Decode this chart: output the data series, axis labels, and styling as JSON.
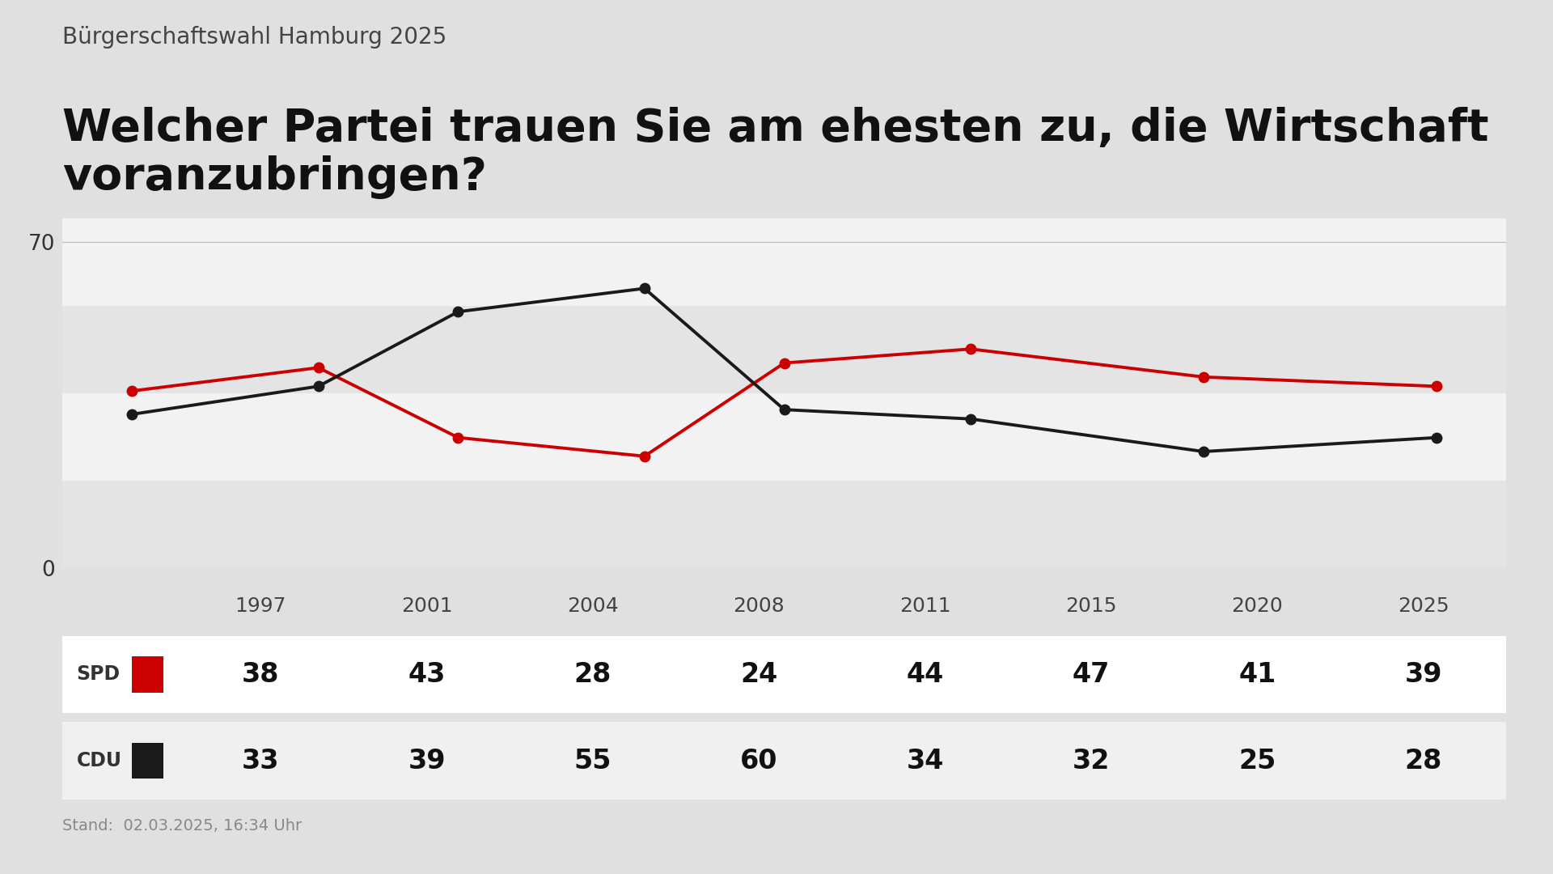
{
  "supertitle": "Bürgerschaftswahl Hamburg 2025",
  "title": "Welcher Partei trauen Sie am ehesten zu, die Wirtschaft\nvoranzubringen?",
  "years": [
    1997,
    2001,
    2004,
    2008,
    2011,
    2015,
    2020,
    2025
  ],
  "spd_values": [
    38,
    43,
    28,
    24,
    44,
    47,
    41,
    39
  ],
  "cdu_values": [
    33,
    39,
    55,
    60,
    34,
    32,
    25,
    28
  ],
  "spd_color": "#cc0000",
  "cdu_color": "#1a1a1a",
  "background_color": "#e0e0e0",
  "chart_bg_light": "#f2f2f2",
  "chart_bg_dark": "#e4e4e4",
  "table_bg_spd": "#ffffff",
  "table_bg_cdu": "#f0f0f0",
  "ylim": [
    0,
    75
  ],
  "yticks": [
    0,
    70
  ],
  "stand_text": "Stand:  02.03.2025, 16:34 Uhr",
  "line_width": 2.8,
  "marker_size": 9
}
